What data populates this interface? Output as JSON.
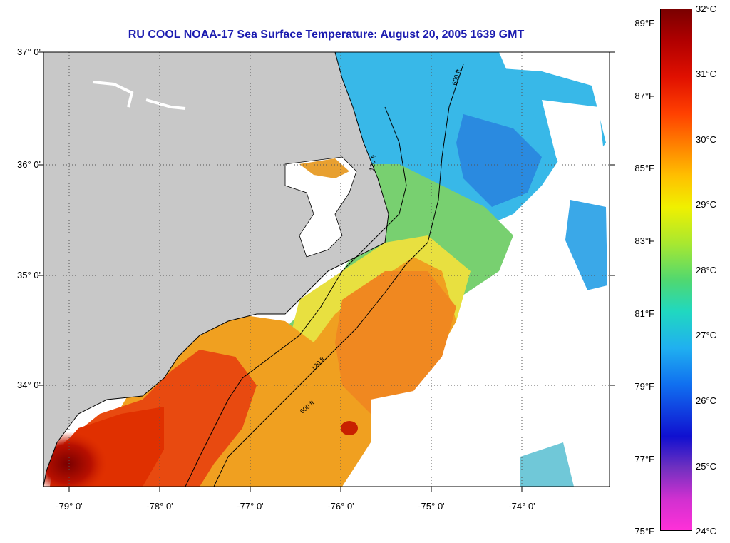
{
  "title": "RU COOL  NOAA-17  Sea Surface Temperature:  August 20, 2005 1639 GMT",
  "lat_labels": [
    "37° 0'",
    "36° 0'",
    "35° 0'",
    "34° 0'"
  ],
  "lon_labels": [
    "-79° 0'",
    "-78° 0'",
    "-77° 0'",
    "-76° 0'",
    "-75° 0'",
    "-74° 0'"
  ],
  "colorbar": {
    "fahrenheit": [
      "89°F",
      "87°F",
      "85°F",
      "83°F",
      "81°F",
      "79°F",
      "77°F",
      "75°F"
    ],
    "celsius": [
      "32°C",
      "31°C",
      "30°C",
      "29°C",
      "28°C",
      "27°C",
      "26°C",
      "25°C",
      "24°C"
    ]
  },
  "contours": [
    "120 ft",
    "600 ft"
  ],
  "colors": {
    "title": "#1c1cb0",
    "land": "#c8c8c8",
    "cold": "#1e90ff",
    "warm": "#e03000",
    "hot": "#7a0000"
  }
}
